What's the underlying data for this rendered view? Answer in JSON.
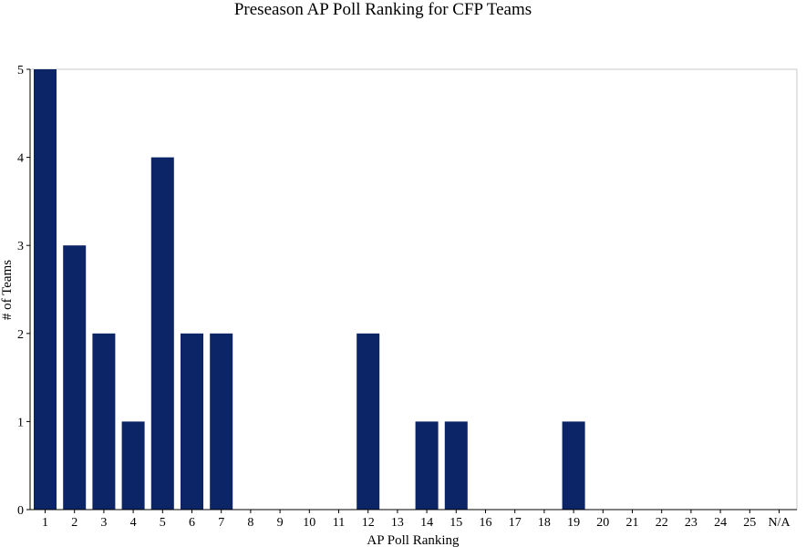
{
  "colors": {
    "bar": "#0c2566",
    "axis": "#000000",
    "frame": "#c8c8c8",
    "background": "#ffffff"
  },
  "chart_data": {
    "type": "bar",
    "title": "Preseason AP Poll Ranking for CFP Teams",
    "xlabel": "AP Poll Ranking",
    "ylabel": "# of Teams",
    "categories": [
      "1",
      "2",
      "3",
      "4",
      "5",
      "6",
      "7",
      "8",
      "9",
      "10",
      "11",
      "12",
      "13",
      "14",
      "15",
      "16",
      "17",
      "18",
      "19",
      "20",
      "21",
      "22",
      "23",
      "24",
      "25",
      "N/A"
    ],
    "values": [
      5,
      3,
      2,
      1,
      4,
      2,
      2,
      0,
      0,
      0,
      0,
      2,
      0,
      1,
      1,
      0,
      0,
      0,
      1,
      0,
      0,
      0,
      0,
      0,
      0,
      0
    ],
    "ylim": [
      0,
      5
    ],
    "yticks": [
      0,
      1,
      2,
      3,
      4,
      5
    ],
    "grid": false,
    "legend": "none"
  }
}
